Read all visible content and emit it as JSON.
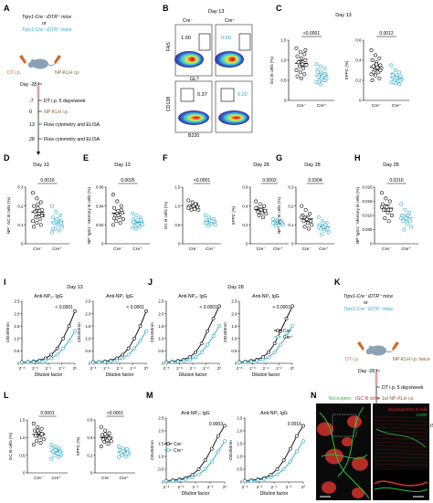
{
  "panels": {
    "A": "A",
    "B": "B",
    "C": "C",
    "D": "D",
    "E": "E",
    "F": "F",
    "G": "G",
    "H": "H",
    "I": "I",
    "J": "J",
    "K": "K",
    "L": "L",
    "M": "M",
    "N": "N"
  },
  "genotypes": {
    "neg": "Cre⁻",
    "pos": "Cre⁺"
  },
  "mice": {
    "line1": "Trpv1-Cre⁻ iDTR⁺ mice",
    "or": "or",
    "line2": "Trpv1-Cre⁺ iDTR⁺ mice"
  },
  "schemeA": {
    "dt": "DT i.p.",
    "nk": "NP-KLH i.p.",
    "days": [
      {
        "d": "Day -28",
        "t": ""
      },
      {
        "d": "-7",
        "t": "DT i.p. 5 days/week"
      },
      {
        "d": "0",
        "t": "NP-KLH i.p."
      },
      {
        "d": "13",
        "t": "Flow cytometry and ELISA"
      },
      {
        "d": "28",
        "t": "Flow cytometry and ELISA"
      }
    ]
  },
  "schemeK": {
    "dt": "DT i.p.",
    "nk": "NP-KLH i.p. twice",
    "days": [
      {
        "d": "Day -28",
        "t": ""
      },
      {
        "d": "",
        "t": "DT i.p. 5 days/week"
      },
      {
        "d": "",
        "t": "1st NP-KLH i.p."
      },
      {
        "d": "",
        "t": "2nd NP-KLH i.p."
      },
      {
        "d": "",
        "t": "Flow cytometry and ELISA"
      }
    ]
  },
  "flow": {
    "day": "Day 13",
    "r1": {
      "y": "FAS",
      "x": "GL7",
      "neg": "1.00",
      "pos": "0.60"
    },
    "r2": {
      "y": "CD138",
      "x": "B220",
      "neg": "0.37",
      "pos": "0.22"
    }
  },
  "scatter": [
    {
      "id": "C1",
      "day": "Day 13",
      "ylabel": "GC B cells (%)",
      "ymax": 1.5,
      "ticks": [
        "0",
        "0.5",
        "1.0",
        "1.5"
      ],
      "p": "<0.0001",
      "neg": [
        1.3,
        1.2,
        1.15,
        1.1,
        1.05,
        1.0,
        0.95,
        0.9,
        0.88,
        0.85,
        0.8,
        0.75,
        0.7,
        0.65,
        0.6,
        0.55,
        1.25,
        0.95
      ],
      "pos": [
        0.9,
        0.85,
        0.8,
        0.75,
        0.7,
        0.65,
        0.6,
        0.6,
        0.55,
        0.5,
        0.5,
        0.45,
        0.4,
        0.65,
        0.7,
        0.55,
        0.5,
        0.45
      ]
    },
    {
      "id": "C2",
      "day": "",
      "ylabel": "SPPC (%)",
      "ymax": 0.6,
      "ticks": [
        "0",
        "0.2",
        "0.4",
        "0.6"
      ],
      "p": "0.0012",
      "neg": [
        0.5,
        0.45,
        0.42,
        0.4,
        0.38,
        0.35,
        0.34,
        0.33,
        0.32,
        0.3,
        0.28,
        0.26,
        0.25,
        0.22,
        0.2,
        0.36,
        0.3,
        0.28
      ],
      "pos": [
        0.35,
        0.3,
        0.28,
        0.26,
        0.25,
        0.24,
        0.23,
        0.22,
        0.21,
        0.2,
        0.19,
        0.18,
        0.17,
        0.16,
        0.25,
        0.22,
        0.2,
        0.18
      ]
    },
    {
      "id": "D",
      "day": "Day 13",
      "ylabel": "NP⁺ GC B cells (%)",
      "ymax": 0.3,
      "ticks": [
        "0",
        "0.1",
        "0.2",
        "0.3"
      ],
      "p": "0.0016",
      "neg": [
        0.27,
        0.24,
        0.22,
        0.2,
        0.19,
        0.18,
        0.17,
        0.16,
        0.15,
        0.14,
        0.13,
        0.12,
        0.11,
        0.1,
        0.09,
        0.21,
        0.15
      ],
      "pos": [
        0.2,
        0.17,
        0.15,
        0.14,
        0.13,
        0.12,
        0.11,
        0.1,
        0.09,
        0.08,
        0.07,
        0.06,
        0.12,
        0.1,
        0.08,
        0.13,
        0.11
      ]
    },
    {
      "id": "E",
      "day": "Day 13",
      "ylabel": "NP⁺IgG1⁺ Memory B cells (%)",
      "ymax": 0.06,
      "ticks": [
        "0",
        "0.02",
        "0.04",
        "0.06"
      ],
      "p": "0.0026",
      "neg": [
        0.052,
        0.045,
        0.04,
        0.038,
        0.035,
        0.033,
        0.03,
        0.028,
        0.026,
        0.024,
        0.022,
        0.02,
        0.032,
        0.036,
        0.027,
        0.03
      ],
      "pos": [
        0.032,
        0.03,
        0.028,
        0.026,
        0.025,
        0.024,
        0.022,
        0.021,
        0.02,
        0.019,
        0.018,
        0.017,
        0.016,
        0.025,
        0.023,
        0.02
      ]
    },
    {
      "id": "F1",
      "day": "Day 28",
      "ylabel": "GC B cells (%)",
      "ymax": 1.5,
      "ticks": [
        "0",
        "0.5",
        "1.0",
        "1.5"
      ],
      "p": "<0.0001",
      "neg": [
        1.15,
        1.1,
        1.05,
        1.0,
        1.0,
        0.98,
        0.95,
        0.92,
        0.9,
        0.9,
        1.05,
        0.95
      ],
      "pos": [
        0.75,
        0.7,
        0.65,
        0.62,
        0.6,
        0.58,
        0.55,
        0.52,
        0.5,
        0.48,
        0.6,
        0.55
      ],
      "dayCenter": true
    },
    {
      "id": "F2",
      "day": "",
      "ylabel": "SPPC (%)",
      "ymax": 0.6,
      "ticks": [
        "0",
        "0.2",
        "0.4",
        "0.6"
      ],
      "p": "0.0002",
      "neg": [
        0.45,
        0.42,
        0.4,
        0.38,
        0.36,
        0.35,
        0.34,
        0.33,
        0.32,
        0.3,
        0.28,
        0.38
      ],
      "pos": [
        0.26,
        0.25,
        0.24,
        0.23,
        0.22,
        0.22,
        0.21,
        0.2,
        0.2,
        0.19,
        0.23,
        0.22
      ]
    },
    {
      "id": "G",
      "day": "Day 28",
      "ylabel": "NP⁺ GC B cells (%)",
      "ymax": 0.3,
      "ticks": [
        "0",
        "0.1",
        "0.2",
        "0.3"
      ],
      "p": "0.0304",
      "neg": [
        0.2,
        0.18,
        0.16,
        0.15,
        0.13,
        0.12,
        0.12,
        0.11,
        0.1,
        0.09,
        0.08,
        0.14
      ],
      "pos": [
        0.14,
        0.12,
        0.11,
        0.1,
        0.09,
        0.08,
        0.08,
        0.07,
        0.06,
        0.05,
        0.1,
        0.09
      ]
    },
    {
      "id": "H",
      "day": "Day 28",
      "ylabel": "NP⁺IgG1⁺ Memory B cells (%)",
      "ymax": 0.02,
      "ticks": [
        "0",
        "0.005",
        "0.010",
        "0.015",
        "0.020"
      ],
      "p": "0.0316",
      "neg": [
        0.018,
        0.016,
        0.015,
        0.014,
        0.013,
        0.012,
        0.012,
        0.011,
        0.01,
        0.009,
        0.008,
        0.013
      ],
      "pos": [
        0.014,
        0.012,
        0.011,
        0.01,
        0.009,
        0.008,
        0.008,
        0.007,
        0.006,
        0.005,
        0.01,
        0.009
      ]
    },
    {
      "id": "L1",
      "day": "",
      "ylabel": "GC B cells (%)",
      "ymax": 1.5,
      "ticks": [
        "0",
        "0.5",
        "1.0",
        "1.5"
      ],
      "p": "0.0001",
      "neg": [
        1.4,
        1.3,
        1.25,
        1.2,
        1.15,
        1.1,
        1.05,
        1.0,
        0.95,
        0.9,
        0.85,
        0.8,
        1.2,
        1.1
      ],
      "pos": [
        0.8,
        0.75,
        0.7,
        0.7,
        0.65,
        0.6,
        0.6,
        0.55,
        0.5,
        0.5,
        0.45,
        0.4,
        0.65,
        0.55
      ]
    },
    {
      "id": "L2",
      "day": "",
      "ylabel": "SPPC (%)",
      "ymax": 0.6,
      "ticks": [
        "0",
        "0.2",
        "0.4",
        "0.6"
      ],
      "p": "<0.0001",
      "neg": [
        0.52,
        0.48,
        0.45,
        0.43,
        0.42,
        0.4,
        0.38,
        0.37,
        0.36,
        0.35,
        0.33,
        0.3,
        0.44,
        0.39
      ],
      "pos": [
        0.3,
        0.28,
        0.27,
        0.26,
        0.25,
        0.24,
        0.23,
        0.22,
        0.21,
        0.2,
        0.19,
        0.18,
        0.25,
        0.22
      ]
    }
  ],
  "elisa": {
    "day13": "Day 13",
    "day28": "Day 28",
    "xlabel": "Dilution factor",
    "ylabel": "OD450nm",
    "xticks": [
      "2⁻⁸",
      "2⁻⁶",
      "2⁻⁴",
      "2⁻²",
      "2⁰"
    ],
    "charts": [
      {
        "id": "I1",
        "title": "Anti-NP₂₇ IgG",
        "ymax": 2.5,
        "yticks": [
          "0",
          "0.5",
          "1.0",
          "1.5",
          "2.0",
          "2.5"
        ],
        "p": "< 0.0001",
        "neg": [
          0.05,
          0.06,
          0.08,
          0.12,
          0.2,
          0.35,
          0.6,
          1.0,
          1.5,
          2.1
        ],
        "pos": [
          0.04,
          0.05,
          0.06,
          0.08,
          0.12,
          0.2,
          0.35,
          0.6,
          0.9,
          1.3
        ]
      },
      {
        "id": "I2",
        "title": "Anti-NP₂ IgG",
        "ymax": 2.5,
        "yticks": [
          "0",
          "0.5",
          "1.0",
          "1.5",
          "2.0",
          "2.5"
        ],
        "p": "< 0.0001",
        "neg": [
          0.05,
          0.06,
          0.08,
          0.12,
          0.2,
          0.35,
          0.6,
          1.0,
          1.5,
          2.1
        ],
        "pos": [
          0.04,
          0.05,
          0.06,
          0.08,
          0.12,
          0.2,
          0.35,
          0.6,
          0.9,
          1.3
        ]
      },
      {
        "id": "J1",
        "title": "Anti-NP₂₇ IgG",
        "ymax": 2.5,
        "yticks": [
          "0",
          "0.5",
          "1.0",
          "1.5",
          "2.0",
          "2.5"
        ],
        "p": "< 0.0001",
        "neg": [
          0.05,
          0.07,
          0.1,
          0.15,
          0.25,
          0.45,
          0.8,
          1.3,
          1.8,
          2.3
        ],
        "pos": [
          0.04,
          0.05,
          0.07,
          0.1,
          0.15,
          0.25,
          0.45,
          0.75,
          1.1,
          1.5
        ]
      },
      {
        "id": "J2",
        "title": "Anti-NP₂ IgG",
        "ymax": 2.5,
        "yticks": [
          "0",
          "0.5",
          "1.0",
          "1.5",
          "2.0",
          "2.5"
        ],
        "p": "< 0.0001",
        "neg": [
          0.05,
          0.07,
          0.1,
          0.15,
          0.25,
          0.45,
          0.8,
          1.3,
          1.8,
          2.3
        ],
        "pos": [
          0.04,
          0.05,
          0.07,
          0.1,
          0.15,
          0.25,
          0.45,
          0.75,
          1.1,
          1.5
        ]
      },
      {
        "id": "M1",
        "title": "Anti-NP₂₇ IgG",
        "ymax": 2.5,
        "yticks": [
          "0",
          "0.5",
          "1.0",
          "1.5",
          "2.0",
          "2.5"
        ],
        "p": "0.0003",
        "neg": [
          0.05,
          0.07,
          0.1,
          0.16,
          0.28,
          0.5,
          0.85,
          1.3,
          1.8,
          2.2
        ],
        "pos": [
          0.04,
          0.05,
          0.07,
          0.11,
          0.18,
          0.3,
          0.5,
          0.8,
          1.2,
          1.6
        ]
      },
      {
        "id": "M2",
        "title": "Anti-NP₂ IgG",
        "ymax": 2.5,
        "yticks": [
          "0",
          "0.5",
          "1.0",
          "1.5",
          "2.0",
          "2.5"
        ],
        "p": "0.0016",
        "neg": [
          0.05,
          0.07,
          0.1,
          0.16,
          0.28,
          0.5,
          0.85,
          1.3,
          1.8,
          2.2
        ],
        "pos": [
          0.04,
          0.05,
          0.07,
          0.11,
          0.18,
          0.3,
          0.5,
          0.8,
          1.2,
          1.6
        ]
      }
    ]
  },
  "micro": {
    "title1": "Nociceptor",
    "title2": "/GC B cells",
    "r1": "Nociceptor/GC B cells",
    "r2": "CGRP"
  },
  "colors": {
    "pos": "#29a9c9",
    "neg": "#000000",
    "red": "#e0312d",
    "green": "#2fbf3a"
  }
}
